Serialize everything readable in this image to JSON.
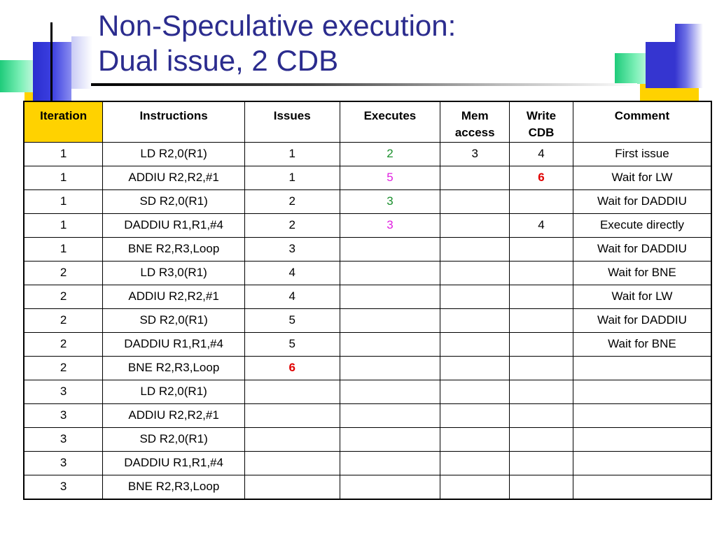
{
  "slide": {
    "title_line1": "Non-Speculative execution:",
    "title_line2": "Dual issue, 2 CDB"
  },
  "colors": {
    "title": "#2b2c8e",
    "green": "#1a8f2c",
    "magenta": "#e020e0",
    "red": "#e00000",
    "accent_yellow": "#ffd200"
  },
  "table": {
    "headers": {
      "iteration": "Iteration",
      "instructions": "Instructions",
      "issues": "Issues",
      "executes": "Executes",
      "mem_access_1": "Mem",
      "mem_access_2": "access",
      "write_cdb_1": "Write",
      "write_cdb_2": "CDB",
      "comment": "Comment"
    },
    "rows": [
      {
        "iteration": "1",
        "instruction": "LD R2,0(R1)",
        "issues": "1",
        "executes": "2",
        "mem": "3",
        "write": "4",
        "comment": "First issue"
      },
      {
        "iteration": "1",
        "instruction": "ADDIU R2,R2,#1",
        "issues": "1",
        "executes": "5",
        "mem": "",
        "write": "6",
        "comment": "Wait for LW"
      },
      {
        "iteration": "1",
        "instruction": "SD R2,0(R1)",
        "issues": "2",
        "executes": "3",
        "mem": "",
        "write": "",
        "comment": "Wait for DADDIU"
      },
      {
        "iteration": "1",
        "instruction": "DADDIU R1,R1,#4",
        "issues": "2",
        "executes": "3",
        "mem": "",
        "write": "4",
        "comment": "Execute directly"
      },
      {
        "iteration": "1",
        "instruction": "BNE R2,R3,Loop",
        "issues": "3",
        "executes": "",
        "mem": "",
        "write": "",
        "comment": "Wait for DADDIU"
      },
      {
        "iteration": "2",
        "instruction": "LD R3,0(R1)",
        "issues": "4",
        "executes": "",
        "mem": "",
        "write": "",
        "comment": "Wait for BNE"
      },
      {
        "iteration": "2",
        "instruction": "ADDIU R2,R2,#1",
        "issues": "4",
        "executes": "",
        "mem": "",
        "write": "",
        "comment": "Wait for LW"
      },
      {
        "iteration": "2",
        "instruction": "SD R2,0(R1)",
        "issues": "5",
        "executes": "",
        "mem": "",
        "write": "",
        "comment": "Wait for DADDIU"
      },
      {
        "iteration": "2",
        "instruction": "DADDIU R1,R1,#4",
        "issues": "5",
        "executes": "",
        "mem": "",
        "write": "",
        "comment": "Wait for BNE"
      },
      {
        "iteration": "2",
        "instruction": "BNE R2,R3,Loop",
        "issues": "6",
        "executes": "",
        "mem": "",
        "write": "",
        "comment": ""
      },
      {
        "iteration": "3",
        "instruction": "LD R2,0(R1)",
        "issues": "",
        "executes": "",
        "mem": "",
        "write": "",
        "comment": ""
      },
      {
        "iteration": "3",
        "instruction": "ADDIU R2,R2,#1",
        "issues": "",
        "executes": "",
        "mem": "",
        "write": "",
        "comment": ""
      },
      {
        "iteration": "3",
        "instruction": "SD R2,0(R1)",
        "issues": "",
        "executes": "",
        "mem": "",
        "write": "",
        "comment": ""
      },
      {
        "iteration": "3",
        "instruction": "DADDIU R1,R1,#4",
        "issues": "",
        "executes": "",
        "mem": "",
        "write": "",
        "comment": ""
      },
      {
        "iteration": "3",
        "instruction": "BNE R2,R3,Loop",
        "issues": "",
        "executes": "",
        "mem": "",
        "write": "",
        "comment": ""
      }
    ]
  }
}
